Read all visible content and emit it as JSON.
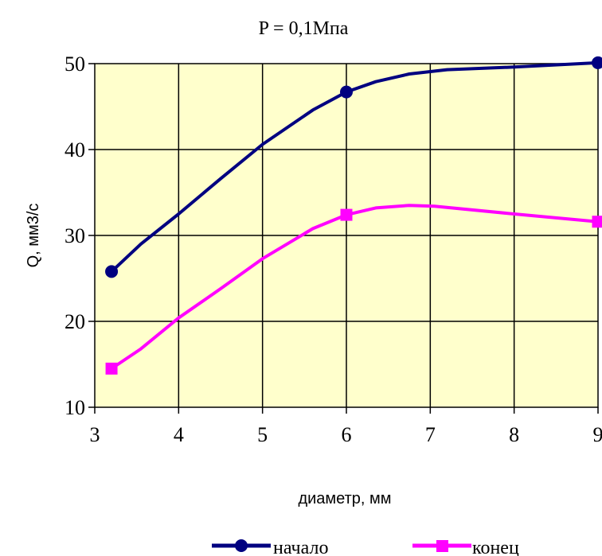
{
  "chart_data": {
    "type": "line",
    "title": "P = 0,1Мпа",
    "xlabel": "диаметр, мм",
    "ylabel": "Q, мм3/с",
    "x_tick_labels": [
      "3",
      "4",
      "5",
      "6",
      "7",
      "8",
      "9"
    ],
    "y_tick_labels": [
      "10",
      "20",
      "30",
      "40",
      "50"
    ],
    "xlim": [
      3,
      9
    ],
    "ylim": [
      10,
      50
    ],
    "grid": true,
    "legend_position": "bottom",
    "plot_background": "#ffffcc",
    "series": [
      {
        "name": "начало",
        "color": "#000080",
        "marker": "circle",
        "points": [
          {
            "x": 3.2,
            "y": 25.8
          },
          {
            "x": 3.55,
            "y": 29.0
          },
          {
            "x": 4.0,
            "y": 32.5
          },
          {
            "x": 4.5,
            "y": 36.6
          },
          {
            "x": 5.0,
            "y": 40.6
          },
          {
            "x": 5.6,
            "y": 44.6
          },
          {
            "x": 6.0,
            "y": 46.7
          },
          {
            "x": 6.35,
            "y": 47.9
          },
          {
            "x": 6.75,
            "y": 48.8
          },
          {
            "x": 7.2,
            "y": 49.3
          },
          {
            "x": 8.0,
            "y": 49.6
          },
          {
            "x": 9.0,
            "y": 50.1
          }
        ],
        "markers": [
          {
            "x": 3.2,
            "y": 25.8
          },
          {
            "x": 6.0,
            "y": 46.7
          },
          {
            "x": 9.0,
            "y": 50.1
          }
        ]
      },
      {
        "name": "конец",
        "color": "#ff00ff",
        "marker": "square",
        "points": [
          {
            "x": 3.2,
            "y": 14.5
          },
          {
            "x": 3.55,
            "y": 16.8
          },
          {
            "x": 4.0,
            "y": 20.4
          },
          {
            "x": 4.5,
            "y": 23.8
          },
          {
            "x": 5.0,
            "y": 27.3
          },
          {
            "x": 5.6,
            "y": 30.8
          },
          {
            "x": 6.0,
            "y": 32.4
          },
          {
            "x": 6.35,
            "y": 33.2
          },
          {
            "x": 6.75,
            "y": 33.5
          },
          {
            "x": 7.05,
            "y": 33.4
          },
          {
            "x": 8.0,
            "y": 32.5
          },
          {
            "x": 9.0,
            "y": 31.6
          }
        ],
        "markers": [
          {
            "x": 3.2,
            "y": 14.5
          },
          {
            "x": 6.0,
            "y": 32.4
          },
          {
            "x": 9.0,
            "y": 31.6
          }
        ]
      }
    ]
  }
}
